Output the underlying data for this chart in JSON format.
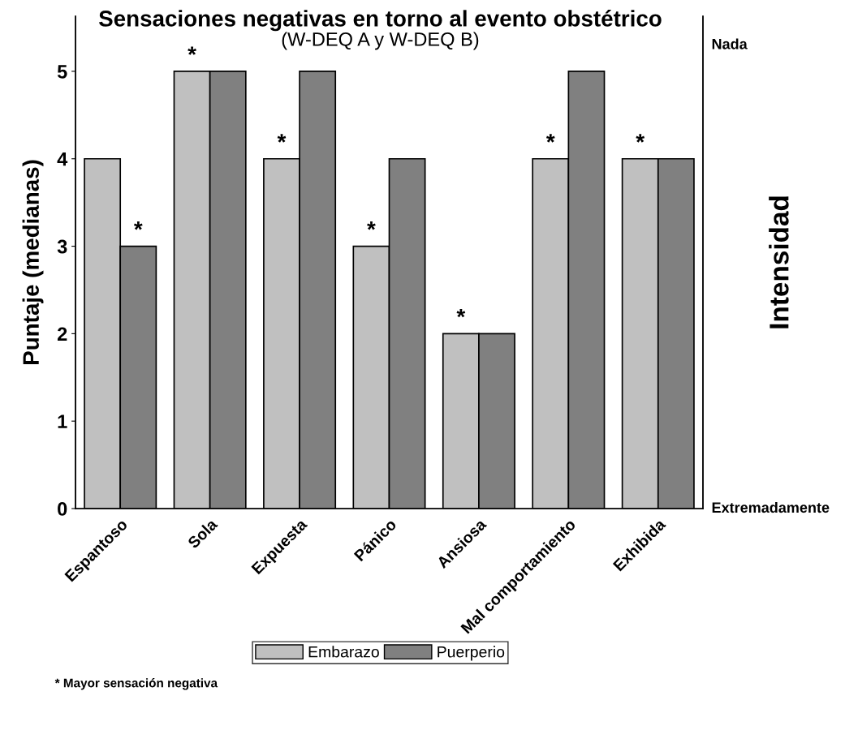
{
  "chart_data": {
    "type": "bar",
    "title": "Sensaciones negativas en torno al evento obstétrico",
    "subtitle": "(W-DEQ A y W-DEQ B)",
    "ylabel": "Puntaje (medianas)",
    "y2label": "Intensidad",
    "categories": [
      "Espantoso",
      "Sola",
      "Expuesta",
      "Pánico",
      "Ansiosa",
      "Mal comportamiento",
      "Exhibida"
    ],
    "series": [
      {
        "name": "Embarazo",
        "color": "#c0c0c0",
        "values": [
          4,
          5,
          4,
          3,
          2,
          4,
          4
        ]
      },
      {
        "name": "Puerperio",
        "color": "#808080",
        "values": [
          3,
          5,
          5,
          4,
          2,
          5,
          4
        ]
      }
    ],
    "ylim": [
      0,
      5.63
    ],
    "yticks": [
      0,
      1,
      2,
      3,
      4,
      5
    ],
    "annotations": [
      {
        "text": "*",
        "x": "Espantoso",
        "y": 3
      },
      {
        "text": "*",
        "x": "Sola",
        "y": 5
      },
      {
        "text": "*",
        "x": "Expuesta",
        "y": 4
      },
      {
        "text": "*",
        "x": "Pánico",
        "y": 3
      },
      {
        "text": "*",
        "x": "Ansiosa",
        "y": 2
      },
      {
        "text": "*",
        "x": "Mal comportamiento",
        "y": 4
      },
      {
        "text": "*",
        "x": "Exhibida",
        "y": 4
      },
      "Nada",
      "Extremadamente",
      "* Mayor sensación negativa"
    ],
    "legend": "bottom",
    "grid": false
  }
}
